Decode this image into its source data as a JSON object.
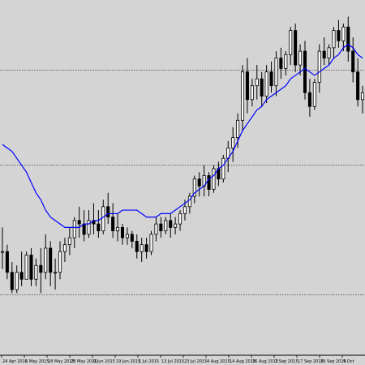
{
  "chart_data": {
    "type": "candlestick",
    "title": "",
    "xlabel": "",
    "ylabel": "",
    "ylim": [
      0,
      100
    ],
    "grid": {
      "horizontal_dotted_levels": [
        82.5,
        55.0,
        17.5
      ]
    },
    "colors": {
      "background": "#d4d4d4",
      "candle": "#000000",
      "bull_body": "#ffffff",
      "bear_body": "#000000",
      "ma_line": "#0000ff",
      "grid": "#555555"
    },
    "x_tick_labels": [
      "24 Apr 2015",
      "6 May 2015",
      "18 May 2015",
      "28 May 2015",
      "9 Jun 2015",
      "19 Jun 2015",
      "1 Jul 2015",
      "13 Jul 2015",
      "23 Jul 2015",
      "4 Aug 2015",
      "14 Aug 2015",
      "26 Aug 2015",
      "7 Sep 2015",
      "17 Sep 2015",
      "29 Sep 2015",
      "9 Oct"
    ],
    "series": [
      {
        "type": "ohlc",
        "values": [
          [
            30,
            37,
            25,
            30
          ],
          [
            30,
            32,
            22,
            24
          ],
          [
            24,
            27,
            18,
            19
          ],
          [
            19,
            26,
            18,
            24
          ],
          [
            24,
            30,
            20,
            22
          ],
          [
            22,
            30,
            22,
            29
          ],
          [
            29,
            31,
            20,
            22
          ],
          [
            22,
            28,
            20,
            26
          ],
          [
            26,
            31,
            18,
            24
          ],
          [
            24,
            35,
            22,
            31
          ],
          [
            31,
            33,
            20,
            24
          ],
          [
            24,
            28,
            19,
            24
          ],
          [
            24,
            33,
            22,
            30
          ],
          [
            30,
            34,
            27,
            32
          ],
          [
            32,
            37,
            29,
            34
          ],
          [
            34,
            40,
            31,
            39
          ],
          [
            39,
            43,
            34,
            38
          ],
          [
            38,
            42,
            33,
            35
          ],
          [
            35,
            42,
            34,
            39
          ],
          [
            39,
            44,
            35,
            38
          ],
          [
            38,
            42,
            34,
            36
          ],
          [
            36,
            45,
            35,
            43
          ],
          [
            43,
            47,
            38,
            40
          ],
          [
            40,
            44,
            34,
            36
          ],
          [
            36,
            41,
            33,
            37
          ],
          [
            37,
            38,
            32,
            34
          ],
          [
            34,
            37,
            32,
            35
          ],
          [
            35,
            36,
            31,
            33
          ],
          [
            33,
            35,
            28,
            30
          ],
          [
            30,
            34,
            27,
            32
          ],
          [
            32,
            34,
            28,
            30
          ],
          [
            30,
            36,
            29,
            35
          ],
          [
            35,
            40,
            33,
            38
          ],
          [
            38,
            40,
            34,
            36
          ],
          [
            36,
            40,
            35,
            39
          ],
          [
            39,
            41,
            34,
            37
          ],
          [
            37,
            40,
            35,
            38
          ],
          [
            38,
            42,
            36,
            41
          ],
          [
            41,
            45,
            39,
            43
          ],
          [
            43,
            47,
            41,
            46
          ],
          [
            46,
            52,
            44,
            51
          ],
          [
            51,
            53,
            46,
            49
          ],
          [
            49,
            55,
            46,
            52
          ],
          [
            52,
            53,
            46,
            48
          ],
          [
            48,
            55,
            47,
            54
          ],
          [
            54,
            56,
            49,
            51
          ],
          [
            51,
            58,
            50,
            57
          ],
          [
            57,
            62,
            53,
            60
          ],
          [
            60,
            66,
            56,
            63
          ],
          [
            63,
            70,
            60,
            68
          ],
          [
            68,
            84,
            65,
            82
          ],
          [
            82,
            86,
            70,
            74
          ],
          [
            74,
            80,
            72,
            78
          ],
          [
            78,
            84,
            74,
            80
          ],
          [
            80,
            82,
            72,
            75
          ],
          [
            75,
            84,
            73,
            82
          ],
          [
            82,
            85,
            76,
            78
          ],
          [
            78,
            88,
            75,
            86
          ],
          [
            86,
            89,
            80,
            83
          ],
          [
            83,
            88,
            81,
            87
          ],
          [
            87,
            95,
            84,
            94
          ],
          [
            94,
            96,
            82,
            84
          ],
          [
            84,
            90,
            81,
            88
          ],
          [
            88,
            91,
            74,
            76
          ],
          [
            76,
            80,
            69,
            72
          ],
          [
            72,
            80,
            71,
            79
          ],
          [
            79,
            90,
            76,
            88
          ],
          [
            88,
            92,
            84,
            86
          ],
          [
            86,
            90,
            84,
            89
          ],
          [
            89,
            95,
            86,
            94
          ],
          [
            94,
            97,
            89,
            91
          ],
          [
            91,
            96,
            88,
            95
          ],
          [
            95,
            98,
            85,
            88
          ],
          [
            88,
            92,
            79,
            82
          ],
          [
            82,
            86,
            72,
            74
          ],
          [
            74,
            78,
            70,
            76
          ]
        ]
      },
      {
        "type": "moving_average",
        "values": [
          61,
          60,
          59,
          57,
          55,
          53,
          50,
          47,
          45,
          42,
          40,
          39,
          38,
          37,
          37,
          37,
          37,
          38,
          38,
          39,
          39,
          40,
          41,
          41,
          41,
          42,
          42,
          42,
          42,
          41,
          40,
          40,
          40,
          41,
          41,
          41,
          42,
          43,
          44,
          45,
          47,
          48,
          49,
          51,
          52,
          54,
          55,
          57,
          59,
          62,
          65,
          67,
          69,
          71,
          72,
          74,
          75,
          76,
          77,
          78,
          80,
          81,
          82,
          83,
          82,
          81,
          82,
          83,
          84,
          86,
          87,
          89,
          90,
          89,
          87,
          86
        ]
      }
    ]
  }
}
